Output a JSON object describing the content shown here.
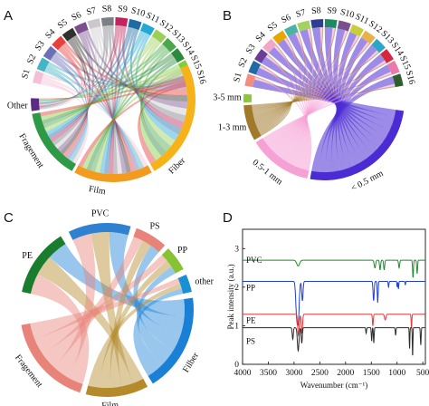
{
  "panels": {
    "A": "A",
    "B": "B",
    "C": "C",
    "D": "D"
  },
  "chart_data": [
    {
      "panel": "A",
      "type": "chord",
      "title": "",
      "sites": [
        "S1",
        "S2",
        "S3",
        "S4",
        "S5",
        "S6",
        "S7",
        "S8",
        "S9",
        "S10",
        "S11",
        "S12",
        "S13",
        "S14",
        "S15",
        "S16"
      ],
      "site_colors": [
        "#f3c0d6",
        "#44b4c6",
        "#6d6fb8",
        "#e8413c",
        "#30302e",
        "#7b4f8d",
        "#c9c9c9",
        "#7b7f86",
        "#c2255c",
        "#1f6aa5",
        "#23a8d5",
        "#9ccf58",
        "#4aa74a",
        "#2d8a3c",
        "#7fcf3a",
        "#e23a3a"
      ],
      "categories": [
        "Other",
        "Fragement",
        "Film",
        "Fiber"
      ],
      "category_colors": [
        "#5b2c83",
        "#2e9a46",
        "#f39b1f",
        "#f7b21a"
      ]
    },
    {
      "panel": "B",
      "type": "chord",
      "title": "",
      "sites": [
        "S1",
        "S2",
        "S3",
        "S4",
        "S5",
        "S6",
        "S7",
        "S8",
        "S9",
        "S10",
        "S11",
        "S12",
        "S13",
        "S14",
        "S15",
        "S16"
      ],
      "site_colors": [
        "#f28e7f",
        "#1f6aa5",
        "#6a3d9a",
        "#f4a6c8",
        "#e6a700",
        "#4ab3a5",
        "#a3d35e",
        "#2f3f8f",
        "#1f8a5f",
        "#7b4f8d",
        "#c7ce3b",
        "#e7b24a",
        "#2aa6c9",
        "#d7263d",
        "#e879a8",
        "#2f5e2e"
      ],
      "categories": [
        "3-5 mm",
        "1-3 mm",
        "0.5-1 mm",
        "< 0.5 mm"
      ],
      "category_colors": [
        "#8cc63f",
        "#a0792a",
        "#f6a1d6",
        "#4b2bd4"
      ]
    },
    {
      "panel": "C",
      "type": "chord",
      "title": "",
      "polymers": [
        "PE",
        "PVC",
        "PS",
        "PP",
        "other"
      ],
      "polymer_colors": [
        "#1a7d2e",
        "#2f80d0",
        "#e8837a",
        "#86c232",
        "#1a8fd6"
      ],
      "shapes": [
        "Fragement",
        "Film",
        "Filber"
      ],
      "shape_colors": [
        "#e8837a",
        "#b48a2a",
        "#1a80d6"
      ]
    },
    {
      "panel": "D",
      "type": "line",
      "title": "",
      "xlabel": "Wavenumber (cm⁻¹)",
      "ylabel": "Peak intensity (a.u.)",
      "xlim": [
        4000,
        450
      ],
      "ylim": [
        0,
        3.5
      ],
      "xticks": [
        4000,
        3500,
        3000,
        2500,
        2000,
        1500,
        1000,
        500
      ],
      "yticks": [
        0,
        1,
        2,
        3
      ],
      "series": [
        {
          "name": "PVC",
          "color": "#1f8a2a",
          "offset": 2.7
        },
        {
          "name": "PP",
          "color": "#1f3fd6",
          "offset": 2.15
        },
        {
          "name": "PE",
          "color": "#e43a3a",
          "offset": 1.3
        },
        {
          "name": "PS",
          "color": "#2b2b2b",
          "offset": 0.95
        }
      ]
    }
  ]
}
